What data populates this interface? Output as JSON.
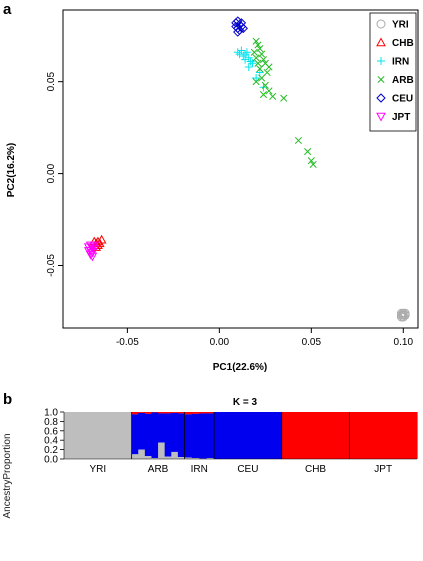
{
  "panel_a_letter": "a",
  "panel_b_letter": "b",
  "chart_data": [
    {
      "type": "scatter",
      "xlabel": "PC1(22.6%)",
      "ylabel": "PC2(16.2%)",
      "xlim": [
        -0.085,
        0.108
      ],
      "ylim": [
        -0.084,
        0.089
      ],
      "xticks": [
        -0.05,
        0.0,
        0.05,
        0.1
      ],
      "xtick_labels": [
        "-0.05",
        "0.00",
        "0.05",
        "0.10"
      ],
      "yticks": [
        -0.05,
        0.0,
        0.05
      ],
      "ytick_labels": [
        "-0.05",
        "0.00",
        "0.05"
      ],
      "legend_position": "top-right",
      "series": [
        {
          "name": "YRI",
          "marker": "circle",
          "color": "#aaaaaa",
          "points": [
            [
              0.1,
              -0.076
            ],
            [
              0.099,
              -0.077
            ],
            [
              0.101,
              -0.077
            ],
            [
              0.1,
              -0.078
            ],
            [
              0.099,
              -0.076
            ],
            [
              0.101,
              -0.076
            ],
            [
              0.1,
              -0.077
            ],
            [
              0.099,
              -0.078
            ]
          ]
        },
        {
          "name": "CHB",
          "marker": "triangle-up",
          "color": "#ff0000",
          "points": [
            [
              -0.064,
              -0.036
            ],
            [
              -0.066,
              -0.037
            ],
            [
              -0.067,
              -0.038
            ],
            [
              -0.065,
              -0.038
            ],
            [
              -0.066,
              -0.039
            ],
            [
              -0.068,
              -0.037
            ],
            [
              -0.067,
              -0.04
            ]
          ]
        },
        {
          "name": "IRN",
          "marker": "plus",
          "color": "#00e5ee",
          "points": [
            [
              0.01,
              0.066
            ],
            [
              0.012,
              0.067
            ],
            [
              0.014,
              0.065
            ],
            [
              0.016,
              0.063
            ],
            [
              0.013,
              0.064
            ],
            [
              0.011,
              0.065
            ],
            [
              0.015,
              0.066
            ],
            [
              0.017,
              0.061
            ],
            [
              0.014,
              0.062
            ],
            [
              0.022,
              0.055
            ],
            [
              0.018,
              0.06
            ],
            [
              0.02,
              0.052
            ],
            [
              0.024,
              0.047
            ],
            [
              0.016,
              0.058
            ]
          ]
        },
        {
          "name": "ARB",
          "marker": "x",
          "color": "#22bb22",
          "points": [
            [
              0.02,
              0.072
            ],
            [
              0.021,
              0.07
            ],
            [
              0.022,
              0.068
            ],
            [
              0.019,
              0.066
            ],
            [
              0.023,
              0.065
            ],
            [
              0.02,
              0.063
            ],
            [
              0.024,
              0.062
            ],
            [
              0.021,
              0.06
            ],
            [
              0.025,
              0.06
            ],
            [
              0.027,
              0.058
            ],
            [
              0.022,
              0.057
            ],
            [
              0.026,
              0.055
            ],
            [
              0.023,
              0.052
            ],
            [
              0.02,
              0.05
            ],
            [
              0.025,
              0.048
            ],
            [
              0.027,
              0.045
            ],
            [
              0.024,
              0.043
            ],
            [
              0.029,
              0.042
            ],
            [
              0.035,
              0.041
            ],
            [
              0.043,
              0.018
            ],
            [
              0.048,
              0.012
            ],
            [
              0.05,
              0.007
            ],
            [
              0.051,
              0.005
            ]
          ]
        },
        {
          "name": "CEU",
          "marker": "diamond",
          "color": "#0000cc",
          "points": [
            [
              0.009,
              0.082
            ],
            [
              0.01,
              0.083
            ],
            [
              0.011,
              0.081
            ],
            [
              0.012,
              0.08
            ],
            [
              0.01,
              0.079
            ],
            [
              0.011,
              0.078
            ],
            [
              0.009,
              0.08
            ],
            [
              0.012,
              0.082
            ],
            [
              0.013,
              0.079
            ],
            [
              0.01,
              0.077
            ]
          ]
        },
        {
          "name": "JPT",
          "marker": "triangle-down",
          "color": "#ff00ff",
          "points": [
            [
              -0.07,
              -0.039
            ],
            [
              -0.069,
              -0.04
            ],
            [
              -0.068,
              -0.041
            ],
            [
              -0.07,
              -0.042
            ],
            [
              -0.069,
              -0.043
            ],
            [
              -0.071,
              -0.04
            ],
            [
              -0.068,
              -0.039
            ],
            [
              -0.07,
              -0.044
            ],
            [
              -0.069,
              -0.045
            ],
            [
              -0.071,
              -0.042
            ]
          ]
        }
      ]
    },
    {
      "type": "bar",
      "title": "K = 3",
      "ylabel": "AncestryProportion",
      "ylim": [
        0,
        1.0
      ],
      "yticks": [
        0.0,
        0.2,
        0.4,
        0.6,
        0.8,
        1.0
      ],
      "ytick_labels": [
        "0.0",
        "0.2",
        "0.4",
        "0.6",
        "0.8",
        "1.0"
      ],
      "stacked": true,
      "component_colors": [
        "#bebebe",
        "#0000ee",
        "#ff0000"
      ],
      "groups": [
        {
          "name": "YRI",
          "share": 0.16,
          "profile": [
            [
              1.0,
              0.0,
              0.0
            ],
            [
              1.0,
              0.0,
              0.0
            ]
          ]
        },
        {
          "name": "ARB",
          "share": 0.125,
          "profile": [
            [
              0.1,
              0.85,
              0.05
            ],
            [
              0.2,
              0.78,
              0.02
            ],
            [
              0.06,
              0.9,
              0.04
            ],
            [
              0.02,
              0.97,
              0.01
            ],
            [
              0.35,
              0.62,
              0.03
            ],
            [
              0.05,
              0.92,
              0.03
            ],
            [
              0.15,
              0.83,
              0.02
            ],
            [
              0.04,
              0.93,
              0.03
            ]
          ]
        },
        {
          "name": "IRN",
          "share": 0.07,
          "profile": [
            [
              0.03,
              0.92,
              0.05
            ],
            [
              0.02,
              0.94,
              0.04
            ],
            [
              0.01,
              0.96,
              0.03
            ],
            [
              0.02,
              0.95,
              0.03
            ]
          ]
        },
        {
          "name": "CEU",
          "share": 0.16,
          "profile": [
            [
              0.0,
              1.0,
              0.0
            ],
            [
              0.0,
              1.0,
              0.0
            ]
          ]
        },
        {
          "name": "CHB",
          "share": 0.16,
          "profile": [
            [
              0.0,
              0.0,
              1.0
            ],
            [
              0.0,
              0.0,
              1.0
            ]
          ]
        },
        {
          "name": "JPT",
          "share": 0.16,
          "profile": [
            [
              0.0,
              0.0,
              1.0
            ],
            [
              0.0,
              0.0,
              1.0
            ]
          ]
        }
      ]
    }
  ]
}
